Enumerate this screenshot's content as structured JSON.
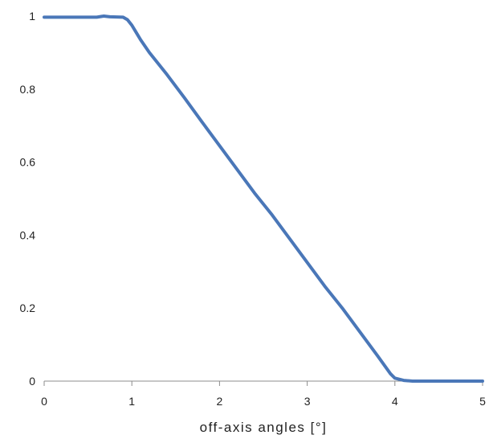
{
  "chart_data": {
    "type": "line",
    "title": "",
    "xlabel": "off-axis angles [°]",
    "ylabel": "",
    "xlim": [
      0,
      5
    ],
    "ylim": [
      0,
      1
    ],
    "x_ticks": [
      "0",
      "1",
      "2",
      "3",
      "4",
      "5"
    ],
    "y_ticks": [
      "0",
      "0.2",
      "0.4",
      "0.6",
      "0.8",
      "1"
    ],
    "grid": false,
    "legend": "none",
    "series": [
      {
        "color": "#4a77b8",
        "x": [
          0,
          0.6,
          0.68,
          0.75,
          0.9,
          0.95,
          1.0,
          1.05,
          1.1,
          1.2,
          1.4,
          1.6,
          1.8,
          2.0,
          2.2,
          2.4,
          2.6,
          2.8,
          3.0,
          3.2,
          3.4,
          3.6,
          3.8,
          3.95,
          4.0,
          4.1,
          4.2,
          4.5,
          5.0
        ],
        "y": [
          0.997,
          0.997,
          1.0,
          0.998,
          0.997,
          0.99,
          0.975,
          0.955,
          0.935,
          0.9,
          0.84,
          0.776,
          0.71,
          0.645,
          0.58,
          0.515,
          0.455,
          0.39,
          0.325,
          0.26,
          0.2,
          0.135,
          0.07,
          0.02,
          0.008,
          0.002,
          0.0,
          0.0,
          0.0
        ]
      }
    ]
  }
}
